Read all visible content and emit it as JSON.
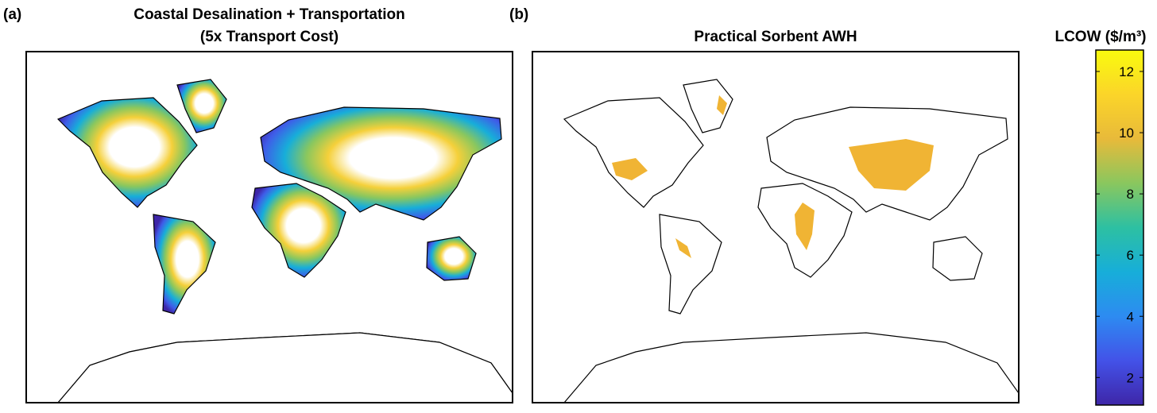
{
  "panels": [
    {
      "label": "(a)",
      "title": [
        "Coastal Desalination + Transportation",
        "(5x Transport Cost)"
      ]
    },
    {
      "label": "(b)",
      "title": [
        "Practical Sorbent AWH"
      ]
    }
  ],
  "colorbar": {
    "label": "LCOW ($/m³)",
    "lim": [
      1.1,
      12.7
    ],
    "ticks": [
      2,
      4,
      6,
      8,
      10,
      12
    ],
    "colormap": [
      "#3e26a8",
      "#4352e8",
      "#2d8bf1",
      "#17aed9",
      "#2dc0a2",
      "#8ac75e",
      "#e8ba3a",
      "#fbd529",
      "#f9fb0e"
    ]
  }
}
